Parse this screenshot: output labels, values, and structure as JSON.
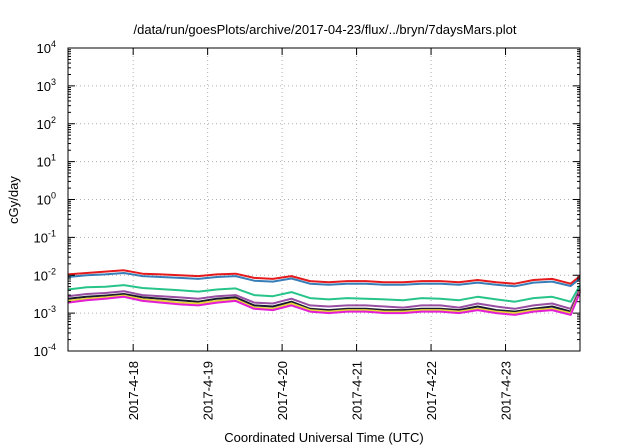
{
  "chart_data": {
    "type": "line",
    "title": "/data/run/goesPlots/archive/2017-04-23/flux/../bryn/7daysMars.plot",
    "xlabel": "Coordinated Universal Time (UTC)",
    "ylabel": "cGy/day",
    "y_scale": "log",
    "ylim": [
      0.0001,
      10000
    ],
    "y_ticks": [
      {
        "value": 0.0001,
        "base": "10",
        "exp": "-4"
      },
      {
        "value": 0.001,
        "base": "10",
        "exp": "-3"
      },
      {
        "value": 0.01,
        "base": "10",
        "exp": "-2"
      },
      {
        "value": 0.1,
        "base": "10",
        "exp": "-1"
      },
      {
        "value": 1,
        "base": "10",
        "exp": "0"
      },
      {
        "value": 10,
        "base": "10",
        "exp": "1"
      },
      {
        "value": 100,
        "base": "10",
        "exp": "2"
      },
      {
        "value": 1000,
        "base": "10",
        "exp": "3"
      },
      {
        "value": 10000,
        "base": "10",
        "exp": "4"
      }
    ],
    "xlim": [
      "2017-04-17 03:00",
      "2017-04-24 00:00"
    ],
    "x_ticks": [
      "2017-4-18",
      "2017-4-19",
      "2017-4-20",
      "2017-4-21",
      "2017-4-22",
      "2017-4-23"
    ],
    "grid": true,
    "legend": "none",
    "x": [
      "2017-04-17 03:00",
      "2017-04-17 09:00",
      "2017-04-17 15:00",
      "2017-04-17 21:00",
      "2017-04-18 03:00",
      "2017-04-18 09:00",
      "2017-04-18 15:00",
      "2017-04-18 21:00",
      "2017-04-19 03:00",
      "2017-04-19 09:00",
      "2017-04-19 15:00",
      "2017-04-19 21:00",
      "2017-04-20 03:00",
      "2017-04-20 09:00",
      "2017-04-20 15:00",
      "2017-04-20 21:00",
      "2017-04-21 03:00",
      "2017-04-21 09:00",
      "2017-04-21 15:00",
      "2017-04-21 21:00",
      "2017-04-22 03:00",
      "2017-04-22 09:00",
      "2017-04-22 15:00",
      "2017-04-22 21:00",
      "2017-04-23 03:00",
      "2017-04-23 09:00",
      "2017-04-23 15:00",
      "2017-04-23 21:00",
      "2017-04-24 00:00"
    ],
    "series": [
      {
        "color": "#e41a1c",
        "values": [
          0.0105,
          0.0115,
          0.0125,
          0.0135,
          0.011,
          0.0105,
          0.01,
          0.0095,
          0.0105,
          0.011,
          0.0085,
          0.008,
          0.0095,
          0.007,
          0.0065,
          0.007,
          0.007,
          0.0065,
          0.0065,
          0.007,
          0.007,
          0.0065,
          0.0075,
          0.0065,
          0.006,
          0.0075,
          0.008,
          0.006,
          0.0095
        ]
      },
      {
        "color": "#377eb8",
        "values": [
          0.009,
          0.01,
          0.0105,
          0.0115,
          0.0095,
          0.009,
          0.0085,
          0.008,
          0.009,
          0.0095,
          0.0072,
          0.0068,
          0.0082,
          0.006,
          0.0056,
          0.006,
          0.006,
          0.0056,
          0.0056,
          0.006,
          0.006,
          0.0056,
          0.0064,
          0.0056,
          0.0051,
          0.0064,
          0.0068,
          0.0052,
          0.0082
        ]
      },
      {
        "color": "#27c489",
        "values": [
          0.0042,
          0.0048,
          0.005,
          0.0055,
          0.0046,
          0.0043,
          0.004,
          0.0037,
          0.0042,
          0.0045,
          0.003,
          0.0028,
          0.0036,
          0.0025,
          0.0023,
          0.0025,
          0.0024,
          0.0023,
          0.0022,
          0.0025,
          0.0024,
          0.0022,
          0.0027,
          0.0023,
          0.002,
          0.0025,
          0.0027,
          0.002,
          0.0055
        ]
      },
      {
        "color": "#984ea3",
        "values": [
          0.0028,
          0.0032,
          0.0034,
          0.0038,
          0.003,
          0.0028,
          0.0026,
          0.0024,
          0.0028,
          0.003,
          0.0019,
          0.0018,
          0.0024,
          0.0016,
          0.0015,
          0.0016,
          0.0016,
          0.0015,
          0.0014,
          0.0016,
          0.0016,
          0.0014,
          0.0018,
          0.0015,
          0.0013,
          0.0016,
          0.0018,
          0.0013,
          0.0045
        ]
      },
      {
        "color": "#1a1a2e",
        "values": [
          0.0024,
          0.0027,
          0.0029,
          0.0032,
          0.0026,
          0.0024,
          0.0022,
          0.002,
          0.0024,
          0.0026,
          0.0016,
          0.0015,
          0.002,
          0.0013,
          0.0012,
          0.0013,
          0.0013,
          0.0012,
          0.0012,
          0.0013,
          0.0013,
          0.0012,
          0.0015,
          0.0012,
          0.0011,
          0.0013,
          0.0015,
          0.0011,
          0.004
        ]
      },
      {
        "color": "#e8d53a",
        "values": [
          0.0021,
          0.0024,
          0.0026,
          0.0029,
          0.0023,
          0.0021,
          0.0019,
          0.0018,
          0.0021,
          0.0023,
          0.0014,
          0.0013,
          0.0018,
          0.0012,
          0.0011,
          0.0012,
          0.0012,
          0.0011,
          0.0011,
          0.0012,
          0.0012,
          0.0011,
          0.0013,
          0.0011,
          0.001,
          0.0012,
          0.0013,
          0.001,
          0.0038
        ]
      },
      {
        "color": "#e21fd4",
        "values": [
          0.0019,
          0.0022,
          0.0024,
          0.0027,
          0.0021,
          0.0019,
          0.0017,
          0.0016,
          0.0019,
          0.0021,
          0.0013,
          0.0012,
          0.0016,
          0.0011,
          0.001,
          0.0011,
          0.0011,
          0.001,
          0.001,
          0.0011,
          0.0011,
          0.001,
          0.0012,
          0.001,
          0.0009,
          0.0011,
          0.0012,
          0.0009,
          0.0036
        ]
      }
    ]
  }
}
